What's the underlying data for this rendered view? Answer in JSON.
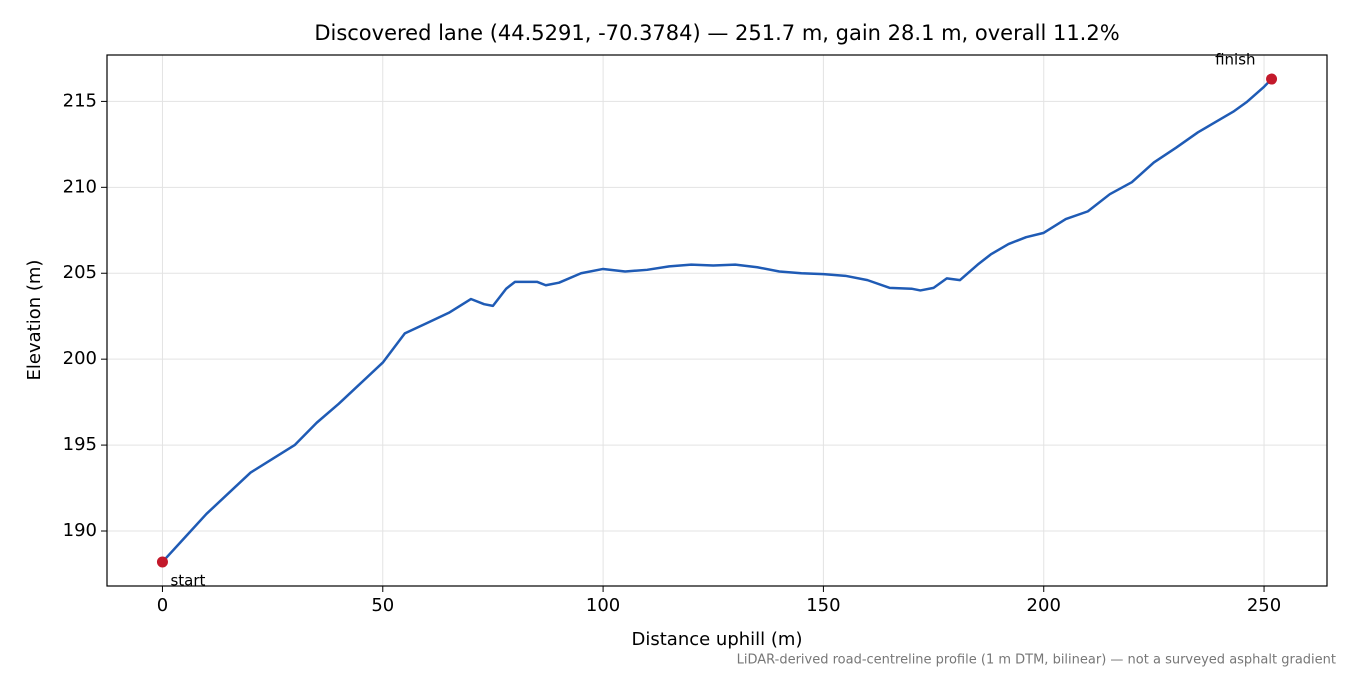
{
  "chart_data": {
    "type": "line",
    "title": "Discovered lane (44.5291, -70.3784) — 251.7 m, gain 28.1 m, overall 11.2%",
    "x_label": "Distance uphill (m)",
    "y_label": "Elevation (m)",
    "note": "LiDAR-derived road-centreline profile (1 m DTM, bilinear) — not a surveyed asphalt gradient",
    "x": [
      0,
      5,
      10,
      15,
      20,
      25,
      30,
      35,
      40,
      45,
      50,
      55,
      60,
      65,
      70,
      73,
      75,
      78,
      80,
      85,
      87,
      90,
      95,
      100,
      105,
      110,
      115,
      120,
      125,
      130,
      135,
      140,
      145,
      150,
      155,
      160,
      165,
      170,
      172,
      175,
      178,
      181,
      185,
      188,
      192,
      196,
      200,
      205,
      210,
      215,
      220,
      225,
      230,
      235,
      238,
      243,
      246,
      250,
      251.7
    ],
    "values": [
      188.2,
      189.6,
      191.0,
      192.2,
      193.4,
      194.2,
      195.0,
      196.3,
      197.4,
      198.6,
      199.8,
      201.5,
      202.1,
      202.7,
      203.5,
      203.2,
      203.1,
      204.1,
      204.5,
      204.5,
      204.3,
      204.45,
      205.0,
      205.25,
      205.1,
      205.2,
      205.4,
      205.5,
      205.45,
      205.5,
      205.35,
      205.1,
      205.0,
      204.95,
      204.85,
      204.6,
      204.15,
      204.1,
      204.0,
      204.15,
      204.7,
      204.6,
      205.5,
      206.1,
      206.7,
      207.1,
      207.35,
      208.15,
      208.6,
      209.6,
      210.3,
      211.45,
      212.3,
      213.2,
      213.65,
      214.4,
      214.95,
      215.85,
      216.3
    ],
    "color": "#1f5bb5",
    "markers": [
      {
        "label": "start",
        "x": 0,
        "y": 188.2
      },
      {
        "label": "finish",
        "x": 251.7,
        "y": 216.3
      }
    ],
    "marker_color": "#c3192b",
    "xlim": [
      -12.585,
      264.285
    ],
    "xticks": [
      0,
      50,
      100,
      150,
      200,
      250
    ],
    "ylim": [
      186.8,
      217.7
    ],
    "yticks": [
      190,
      195,
      200,
      205,
      210,
      215
    ],
    "grid": true
  }
}
